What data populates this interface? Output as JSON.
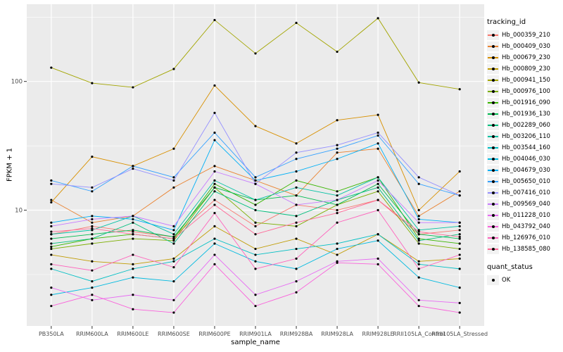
{
  "chart": {
    "ylabel": "FPKM + 1",
    "xlabel": "sample_name",
    "legend_title": "tracking_id",
    "quant_legend_title": "quant_status",
    "quant_items": [
      {
        "label": "OK"
      }
    ]
  },
  "chart_data": {
    "type": "line",
    "x_type": "categorical",
    "yscale": "log10",
    "ylim": [
      1.26,
      398
    ],
    "grid": true,
    "legend_position": "right",
    "panel_bg": "#EBEBEB",
    "grid_color": "#FFFFFF",
    "point_color": "#000000",
    "y_ticks": [
      {
        "value": 100,
        "label": "100"
      },
      {
        "value": 10,
        "label": "10"
      }
    ],
    "y_minor_gridlines": [
      3.16,
      31.6,
      316
    ],
    "categories": [
      "PB350LA",
      "RRIM600LA",
      "RRIM600LE",
      "RRIM600SE",
      "RRIM600PE",
      "RRIM901LA",
      "RRIM928BA",
      "RRIM928LA",
      "RRIM928LE",
      "RRII105LA_Control",
      "RRII105LA_Stressed"
    ],
    "series": [
      {
        "name": "Hb_000359_210",
        "color": "#F8766D",
        "values": [
          6.5,
          7.5,
          6.8,
          6.2,
          12,
          7.5,
          11,
          10,
          12,
          6.5,
          7
        ]
      },
      {
        "name": "Hb_000409_030",
        "color": "#EA8331",
        "values": [
          12,
          8,
          9,
          15,
          22,
          17,
          13,
          28,
          30,
          9,
          14
        ]
      },
      {
        "name": "Hb_000679_230",
        "color": "#D89000",
        "values": [
          11.5,
          26,
          22,
          30,
          93,
          45,
          33,
          50,
          55,
          10,
          20
        ]
      },
      {
        "name": "Hb_000809_230",
        "color": "#C09B00",
        "values": [
          4.5,
          4,
          3.8,
          4.2,
          7.5,
          5,
          6,
          4.5,
          6.5,
          4,
          4.2
        ]
      },
      {
        "name": "Hb_000941_150",
        "color": "#A3A500",
        "values": [
          128,
          97,
          90,
          125,
          300,
          165,
          285,
          170,
          310,
          98,
          87
        ]
      },
      {
        "name": "Hb_000976_100",
        "color": "#7CAE00",
        "values": [
          5,
          5.5,
          6,
          5.8,
          15,
          8,
          7.5,
          11,
          14,
          5.5,
          5
        ]
      },
      {
        "name": "Hb_001916_090",
        "color": "#39B600",
        "values": [
          5.2,
          6,
          6.5,
          6,
          16,
          11,
          17,
          14,
          18,
          6,
          5.5
        ]
      },
      {
        "name": "Hb_001936_130",
        "color": "#00BB4E",
        "values": [
          6,
          6.5,
          7,
          6.2,
          15,
          12,
          13,
          11,
          16,
          6.5,
          6
        ]
      },
      {
        "name": "Hb_002289_060",
        "color": "#00BF7D",
        "values": [
          5.5,
          6,
          8,
          5.5,
          14,
          10,
          9,
          12,
          15,
          5.8,
          6.5
        ]
      },
      {
        "name": "Hb_003206_110",
        "color": "#00C1A3",
        "values": [
          6.5,
          7,
          9,
          6.5,
          17,
          12,
          15,
          13,
          18,
          7,
          7.5
        ]
      },
      {
        "name": "Hb_003544_160",
        "color": "#00BFC4",
        "values": [
          3.5,
          2.8,
          3.5,
          4,
          6,
          4.5,
          5,
          5.5,
          6.5,
          3.8,
          3.5
        ]
      },
      {
        "name": "Hb_004046_030",
        "color": "#00BAE0",
        "values": [
          2.2,
          2.5,
          3,
          2.8,
          5.5,
          4,
          3.5,
          5,
          5.8,
          3,
          2.5
        ]
      },
      {
        "name": "Hb_004679_030",
        "color": "#00B0F6",
        "values": [
          8,
          9,
          8.5,
          7,
          35,
          17,
          20,
          25,
          33,
          8.5,
          8
        ]
      },
      {
        "name": "Hb_005650_010",
        "color": "#35A2FF",
        "values": [
          17,
          14,
          22,
          18,
          40,
          18,
          25,
          30,
          38,
          16,
          13
        ]
      },
      {
        "name": "Hb_007416_010",
        "color": "#9590FF",
        "values": [
          16,
          15,
          21,
          17,
          57,
          16,
          28,
          32,
          40,
          18,
          13
        ]
      },
      {
        "name": "Hb_009569_040",
        "color": "#C77CFF",
        "values": [
          7.5,
          8.5,
          9,
          7.5,
          20,
          16,
          11,
          12,
          17,
          8,
          8
        ]
      },
      {
        "name": "Hb_011228_010",
        "color": "#E76BF3",
        "values": [
          2.5,
          2,
          2.2,
          2,
          4.5,
          2.2,
          2.8,
          4,
          4.2,
          2,
          1.9
        ]
      },
      {
        "name": "Hb_043792_040",
        "color": "#FA62DB",
        "values": [
          1.8,
          2.2,
          1.7,
          1.6,
          3.8,
          1.8,
          2.3,
          3.9,
          3.8,
          1.8,
          1.6
        ]
      },
      {
        "name": "Hb_126976_010",
        "color": "#FF62BC",
        "values": [
          3.8,
          3.4,
          4.5,
          3.6,
          9.5,
          3.5,
          4.2,
          8,
          10,
          3.5,
          4.5
        ]
      },
      {
        "name": "Hb_138585_080",
        "color": "#FF6A98",
        "values": [
          6.8,
          7.2,
          6.5,
          6,
          11,
          6.5,
          8,
          9.5,
          12,
          6.8,
          6.2
        ]
      }
    ]
  }
}
